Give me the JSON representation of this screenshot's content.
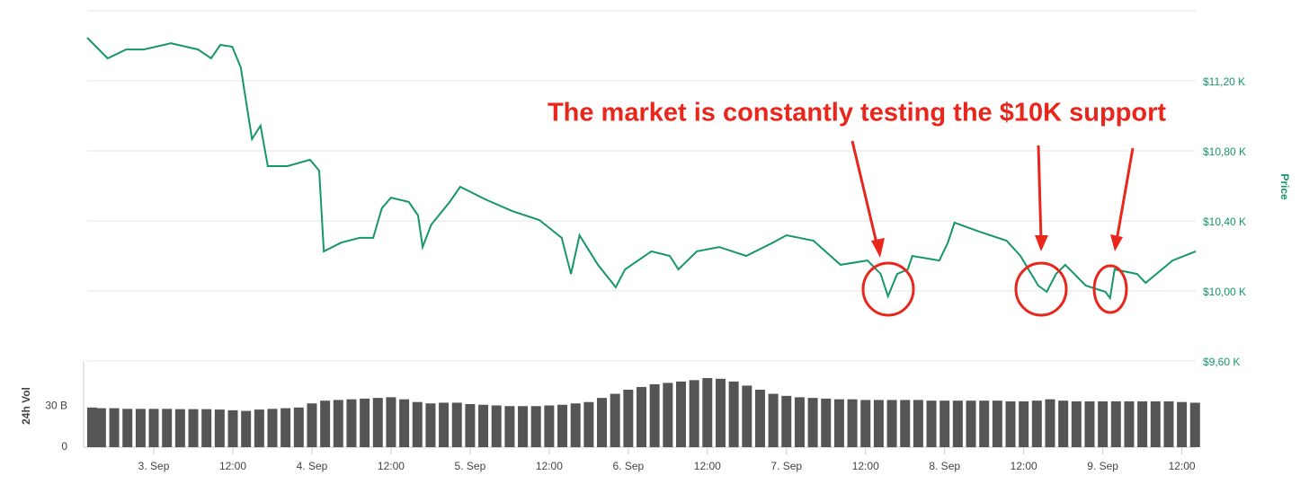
{
  "chart_data": [
    {
      "type": "line",
      "y_label": "Price",
      "color": "#16966a",
      "annotation": "The market is constantly testing the $10K support",
      "x": [
        -10.1,
        -7.0,
        -4.2,
        -1.5,
        2.6,
        6.7,
        8.7,
        10.1,
        11.9,
        13.2,
        14.9,
        16.2,
        17.3,
        20.3,
        23.7,
        25.1,
        25.8,
        28.5,
        31.2,
        33.3,
        34.6,
        36.0,
        38.7,
        40.1,
        40.8,
        42.1,
        44.9,
        46.5,
        50.3,
        54.4,
        58.5,
        61.9,
        63.3,
        64.6,
        67.4,
        70.1,
        71.5,
        75.5,
        78.3,
        79.6,
        82.4,
        85.8,
        89.9,
        94.0,
        96.0,
        100.1,
        104.2,
        108.3,
        110.3,
        111.4,
        112.8,
        114.4,
        115.1,
        119.2,
        120.5,
        121.5,
        125.3,
        129.4,
        131.5,
        134.2,
        135.5,
        136.9,
        138.3,
        141.4,
        144.4,
        145.1,
        145.8,
        149.2,
        150.5,
        154.6,
        158.1
      ],
      "values": [
        11446,
        11328,
        11379,
        11379,
        11415,
        11379,
        11328,
        11405,
        11395,
        11277,
        10867,
        10944,
        10713,
        10713,
        10749,
        10687,
        10226,
        10277,
        10303,
        10303,
        10472,
        10533,
        10508,
        10431,
        10251,
        10379,
        10508,
        10595,
        10523,
        10456,
        10405,
        10303,
        10097,
        10318,
        10149,
        10021,
        10123,
        10226,
        10200,
        10123,
        10226,
        10251,
        10200,
        10277,
        10318,
        10287,
        10149,
        10174,
        10097,
        9969,
        10097,
        10123,
        10200,
        10174,
        10277,
        10390,
        10338,
        10287,
        10200,
        10031,
        9995,
        10097,
        10149,
        10031,
        9995,
        9959,
        10123,
        10097,
        10046,
        10174,
        10226
      ],
      "xlim": [
        -10.1,
        158.1
      ],
      "xticks": [
        {
          "value": 0,
          "label": "3. Sep"
        },
        {
          "value": 12,
          "label": "12:00"
        },
        {
          "value": 24,
          "label": "4. Sep"
        },
        {
          "value": 36,
          "label": "12:00"
        },
        {
          "value": 48,
          "label": "5. Sep"
        },
        {
          "value": 60,
          "label": "12:00"
        },
        {
          "value": 72,
          "label": "6. Sep"
        },
        {
          "value": 84,
          "label": "12:00"
        },
        {
          "value": 96,
          "label": "7. Sep"
        },
        {
          "value": 108,
          "label": "12:00"
        },
        {
          "value": 120,
          "label": "8. Sep"
        },
        {
          "value": 132,
          "label": "12:00"
        },
        {
          "value": 144,
          "label": "9. Sep"
        },
        {
          "value": 156,
          "label": "12:00"
        }
      ],
      "ylim": [
        9600,
        11600
      ],
      "yticks": [
        {
          "value": 9600,
          "label": "$9,60 K"
        },
        {
          "value": 10000,
          "label": "$10,00 K"
        },
        {
          "value": 10400,
          "label": "$10,40 K"
        },
        {
          "value": 10800,
          "label": "$10,80 K"
        },
        {
          "value": 11200,
          "label": "$11,20 K"
        }
      ],
      "grid": true
    },
    {
      "type": "bar",
      "y_label": "24h Vol",
      "color": "#555555",
      "x": [
        -10,
        -8,
        -6,
        -4,
        -2,
        0,
        2,
        4,
        6,
        8,
        10,
        12,
        14,
        16,
        18,
        20,
        22,
        24,
        26,
        28,
        30,
        32,
        34,
        36,
        38,
        40,
        42,
        44,
        46,
        48,
        50,
        52,
        54,
        56,
        58,
        60,
        62,
        64,
        66,
        68,
        70,
        72,
        74,
        76,
        78,
        80,
        82,
        84,
        86,
        88,
        90,
        92,
        94,
        96,
        98,
        100,
        102,
        104,
        106,
        108,
        110,
        112,
        114,
        116,
        118,
        120,
        122,
        124,
        126,
        128,
        130,
        132,
        134,
        136,
        138,
        140,
        142,
        144,
        146,
        148,
        150,
        152,
        154,
        156,
        158
      ],
      "values": [
        29,
        28.5,
        28.5,
        28,
        28,
        28,
        28,
        27.8,
        27.8,
        27.8,
        27.5,
        27,
        26.5,
        27.5,
        28,
        28.5,
        29,
        32,
        34,
        34.5,
        35,
        35.5,
        36,
        36.5,
        35,
        33,
        32,
        32.5,
        32.5,
        31.5,
        31,
        30.5,
        30,
        30,
        30,
        30.5,
        31,
        32,
        33,
        36,
        39,
        42,
        44,
        46,
        47,
        48,
        49,
        50.5,
        50,
        48,
        45,
        42,
        39,
        37.5,
        36.5,
        36,
        35.5,
        35,
        35,
        34.5,
        34.5,
        34.5,
        34.5,
        34.5,
        34,
        34,
        34,
        34,
        34,
        34,
        33.5,
        33.5,
        34,
        35,
        34,
        33.5,
        33.5,
        33.5,
        33.5,
        33.5,
        33.5,
        33.5,
        33.5,
        33,
        32.5
      ],
      "ylim": [
        0,
        63
      ],
      "yticks": [
        0,
        {
          "value": 30,
          "label": "30 B"
        }
      ]
    }
  ]
}
